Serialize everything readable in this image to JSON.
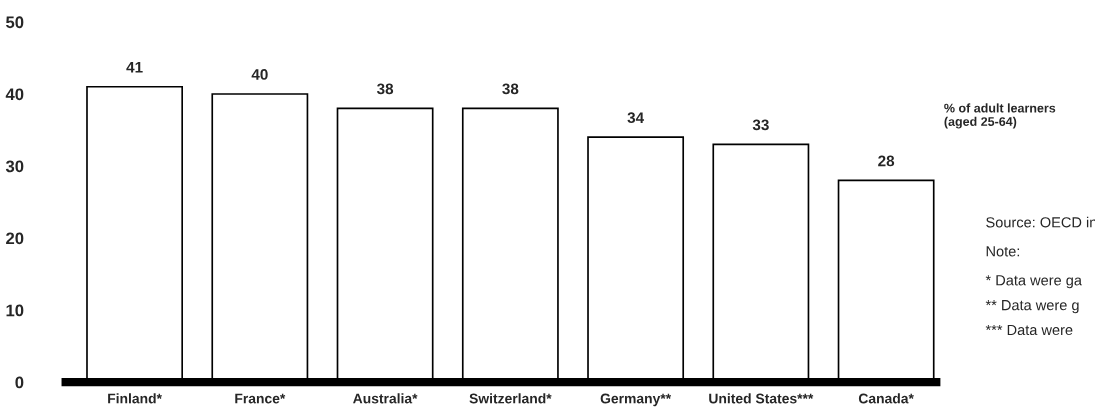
{
  "chart_data": {
    "type": "bar",
    "categories": [
      "Finland*",
      "France*",
      "Australia*",
      "Switzerland*",
      "Germany**",
      "United States***",
      "Canada*"
    ],
    "values": [
      41,
      40,
      38,
      38,
      34,
      33,
      28
    ],
    "color": "#ffffff",
    "ylim": [
      0,
      50
    ],
    "yticks": [
      0,
      10,
      20,
      30,
      40,
      50
    ],
    "data_labels": true,
    "grid": false,
    "legend": false,
    "annotations": [
      "% of adult learners\n(aged 25-64)",
      "Source: OECD in",
      "Note:",
      "* Data were ga",
      "** Data were g",
      "*** Data were"
    ]
  }
}
